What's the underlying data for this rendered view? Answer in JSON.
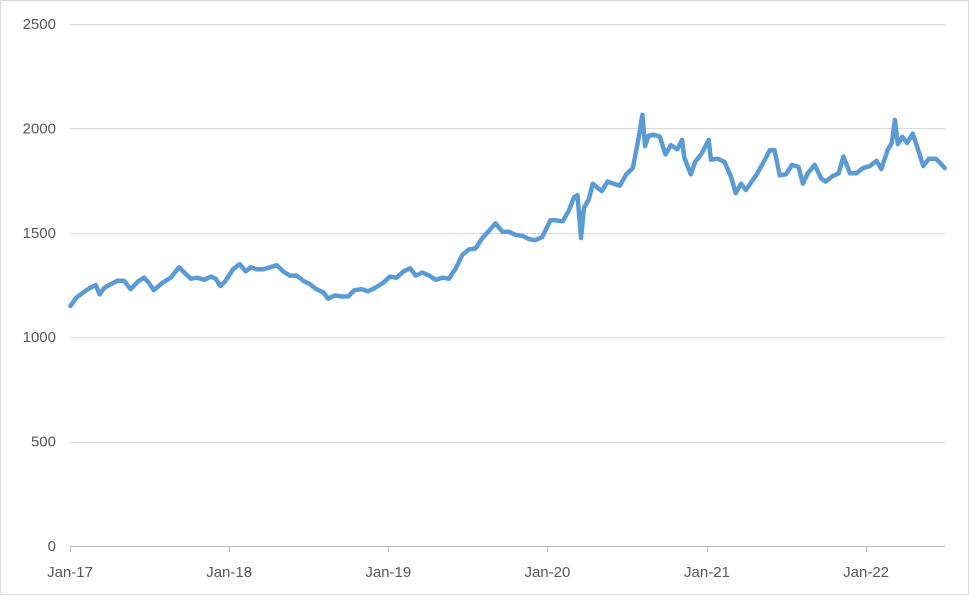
{
  "chart_data": {
    "type": "line",
    "title": "",
    "xlabel": "",
    "ylabel": "",
    "ylim": [
      0,
      2500
    ],
    "yticks": [
      0,
      500,
      1000,
      1500,
      2000,
      2500
    ],
    "xlim": [
      "2017-01-01",
      "2022-07-01"
    ],
    "xticks": [
      {
        "date": "2017-01-01",
        "label": "Jan-17"
      },
      {
        "date": "2018-01-01",
        "label": "Jan-18"
      },
      {
        "date": "2019-01-01",
        "label": "Jan-19"
      },
      {
        "date": "2020-01-01",
        "label": "Jan-20"
      },
      {
        "date": "2021-01-01",
        "label": "Jan-21"
      },
      {
        "date": "2022-01-01",
        "label": "Jan-22"
      }
    ],
    "grid": "horizontal",
    "legend": "none",
    "series": [
      {
        "color": "#5b9bd5",
        "points": [
          [
            "2017-01-02",
            1150
          ],
          [
            "2017-01-16",
            1190
          ],
          [
            "2017-02-01",
            1215
          ],
          [
            "2017-02-15",
            1235
          ],
          [
            "2017-03-01",
            1250
          ],
          [
            "2017-03-10",
            1205
          ],
          [
            "2017-03-20",
            1235
          ],
          [
            "2017-04-01",
            1250
          ],
          [
            "2017-04-20",
            1270
          ],
          [
            "2017-05-05",
            1270
          ],
          [
            "2017-05-20",
            1230
          ],
          [
            "2017-06-05",
            1265
          ],
          [
            "2017-06-20",
            1285
          ],
          [
            "2017-07-01",
            1260
          ],
          [
            "2017-07-12",
            1225
          ],
          [
            "2017-08-01",
            1260
          ],
          [
            "2017-08-20",
            1285
          ],
          [
            "2017-09-08",
            1335
          ],
          [
            "2017-09-20",
            1310
          ],
          [
            "2017-10-05",
            1280
          ],
          [
            "2017-10-20",
            1285
          ],
          [
            "2017-11-05",
            1275
          ],
          [
            "2017-11-20",
            1290
          ],
          [
            "2017-12-01",
            1280
          ],
          [
            "2017-12-12",
            1245
          ],
          [
            "2017-12-22",
            1265
          ],
          [
            "2018-01-10",
            1325
          ],
          [
            "2018-01-25",
            1350
          ],
          [
            "2018-02-08",
            1315
          ],
          [
            "2018-02-20",
            1335
          ],
          [
            "2018-03-05",
            1325
          ],
          [
            "2018-03-20",
            1325
          ],
          [
            "2018-04-05",
            1335
          ],
          [
            "2018-04-20",
            1345
          ],
          [
            "2018-05-05",
            1315
          ],
          [
            "2018-05-20",
            1295
          ],
          [
            "2018-06-05",
            1295
          ],
          [
            "2018-06-20",
            1270
          ],
          [
            "2018-07-05",
            1255
          ],
          [
            "2018-07-20",
            1230
          ],
          [
            "2018-08-05",
            1215
          ],
          [
            "2018-08-16",
            1185
          ],
          [
            "2018-09-01",
            1200
          ],
          [
            "2018-09-15",
            1195
          ],
          [
            "2018-10-01",
            1195
          ],
          [
            "2018-10-15",
            1225
          ],
          [
            "2018-11-01",
            1230
          ],
          [
            "2018-11-15",
            1220
          ],
          [
            "2018-12-01",
            1235
          ],
          [
            "2018-12-20",
            1260
          ],
          [
            "2019-01-05",
            1290
          ],
          [
            "2019-01-20",
            1285
          ],
          [
            "2019-02-05",
            1315
          ],
          [
            "2019-02-20",
            1330
          ],
          [
            "2019-03-05",
            1295
          ],
          [
            "2019-03-20",
            1310
          ],
          [
            "2019-04-05",
            1295
          ],
          [
            "2019-04-20",
            1275
          ],
          [
            "2019-05-05",
            1285
          ],
          [
            "2019-05-20",
            1280
          ],
          [
            "2019-06-05",
            1330
          ],
          [
            "2019-06-20",
            1395
          ],
          [
            "2019-07-05",
            1420
          ],
          [
            "2019-07-20",
            1425
          ],
          [
            "2019-08-05",
            1475
          ],
          [
            "2019-08-20",
            1510
          ],
          [
            "2019-09-04",
            1545
          ],
          [
            "2019-09-20",
            1505
          ],
          [
            "2019-10-05",
            1505
          ],
          [
            "2019-10-20",
            1490
          ],
          [
            "2019-11-05",
            1485
          ],
          [
            "2019-11-20",
            1470
          ],
          [
            "2019-12-05",
            1465
          ],
          [
            "2019-12-20",
            1480
          ],
          [
            "2020-01-08",
            1560
          ],
          [
            "2020-01-20",
            1560
          ],
          [
            "2020-02-05",
            1555
          ],
          [
            "2020-02-20",
            1610
          ],
          [
            "2020-03-02",
            1670
          ],
          [
            "2020-03-10",
            1680
          ],
          [
            "2020-03-18",
            1475
          ],
          [
            "2020-03-25",
            1620
          ],
          [
            "2020-04-05",
            1660
          ],
          [
            "2020-04-14",
            1735
          ],
          [
            "2020-04-25",
            1715
          ],
          [
            "2020-05-05",
            1700
          ],
          [
            "2020-05-18",
            1745
          ],
          [
            "2020-06-01",
            1735
          ],
          [
            "2020-06-15",
            1725
          ],
          [
            "2020-06-30",
            1780
          ],
          [
            "2020-07-15",
            1810
          ],
          [
            "2020-07-27",
            1940
          ],
          [
            "2020-08-06",
            2065
          ],
          [
            "2020-08-12",
            1915
          ],
          [
            "2020-08-20",
            1965
          ],
          [
            "2020-09-01",
            1970
          ],
          [
            "2020-09-15",
            1960
          ],
          [
            "2020-09-28",
            1875
          ],
          [
            "2020-10-10",
            1920
          ],
          [
            "2020-10-25",
            1900
          ],
          [
            "2020-11-05",
            1945
          ],
          [
            "2020-11-10",
            1860
          ],
          [
            "2020-11-25",
            1780
          ],
          [
            "2020-12-05",
            1840
          ],
          [
            "2020-12-20",
            1880
          ],
          [
            "2021-01-05",
            1945
          ],
          [
            "2021-01-10",
            1850
          ],
          [
            "2021-01-25",
            1855
          ],
          [
            "2021-02-10",
            1840
          ],
          [
            "2021-02-25",
            1770
          ],
          [
            "2021-03-08",
            1690
          ],
          [
            "2021-03-20",
            1735
          ],
          [
            "2021-03-31",
            1705
          ],
          [
            "2021-04-12",
            1740
          ],
          [
            "2021-04-25",
            1780
          ],
          [
            "2021-05-10",
            1835
          ],
          [
            "2021-05-25",
            1895
          ],
          [
            "2021-06-05",
            1895
          ],
          [
            "2021-06-17",
            1775
          ],
          [
            "2021-07-01",
            1780
          ],
          [
            "2021-07-15",
            1825
          ],
          [
            "2021-07-30",
            1815
          ],
          [
            "2021-08-09",
            1735
          ],
          [
            "2021-08-20",
            1785
          ],
          [
            "2021-09-05",
            1825
          ],
          [
            "2021-09-20",
            1760
          ],
          [
            "2021-09-30",
            1745
          ],
          [
            "2021-10-15",
            1770
          ],
          [
            "2021-10-30",
            1785
          ],
          [
            "2021-11-10",
            1865
          ],
          [
            "2021-11-25",
            1785
          ],
          [
            "2021-12-10",
            1785
          ],
          [
            "2021-12-25",
            1810
          ],
          [
            "2022-01-10",
            1820
          ],
          [
            "2022-01-25",
            1845
          ],
          [
            "2022-02-05",
            1805
          ],
          [
            "2022-02-20",
            1900
          ],
          [
            "2022-03-01",
            1930
          ],
          [
            "2022-03-08",
            2040
          ],
          [
            "2022-03-15",
            1925
          ],
          [
            "2022-03-25",
            1960
          ],
          [
            "2022-04-05",
            1930
          ],
          [
            "2022-04-18",
            1975
          ],
          [
            "2022-04-30",
            1900
          ],
          [
            "2022-05-12",
            1820
          ],
          [
            "2022-05-25",
            1855
          ],
          [
            "2022-06-10",
            1855
          ],
          [
            "2022-06-22",
            1830
          ],
          [
            "2022-06-30",
            1810
          ]
        ]
      }
    ]
  }
}
